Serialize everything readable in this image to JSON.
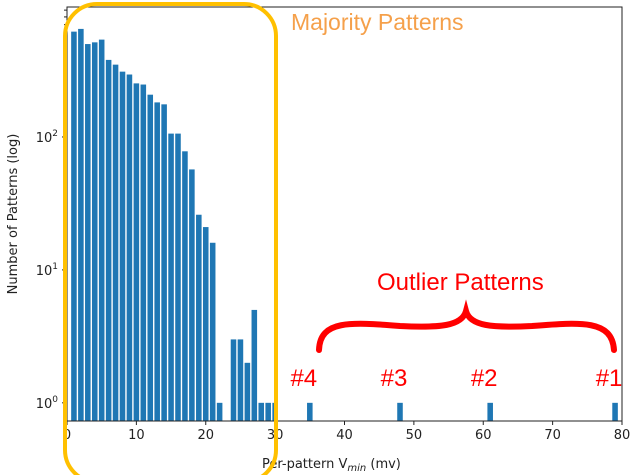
{
  "chart_data": {
    "type": "bar",
    "title": "",
    "xlabel": "Per-pattern V",
    "xlabel_subscript": "min",
    "xlabel_unit": " (mv)",
    "ylabel": "Number of Patterns (log)",
    "yscale": "log",
    "xlim": [
      0,
      80
    ],
    "ylim": [
      0.73,
      950
    ],
    "grid": false,
    "bar_color": "#1f77b4",
    "x_ticks": [
      "0",
      "10",
      "20",
      "30",
      "40",
      "50",
      "60",
      "70",
      "80"
    ],
    "y_ticks": [
      {
        "base": "10",
        "exp": "0"
      },
      {
        "base": "10",
        "exp": "1"
      },
      {
        "base": "10",
        "exp": "2"
      }
    ],
    "x": [
      1,
      2,
      3,
      4,
      5,
      6,
      7,
      8,
      9,
      10,
      11,
      12,
      13,
      14,
      15,
      16,
      17,
      18,
      19,
      20,
      21,
      22,
      24,
      25,
      26,
      27,
      28,
      29,
      30,
      35,
      48,
      61,
      79
    ],
    "values": [
      620,
      650,
      500,
      515,
      540,
      380,
      350,
      310,
      295,
      253,
      248,
      208,
      182,
      176,
      106,
      106,
      78,
      57,
      26,
      21,
      16,
      1,
      3,
      3,
      2,
      5,
      1,
      1,
      1,
      1,
      1,
      1,
      1
    ]
  },
  "annotations": {
    "majority_label": "Majority Patterns",
    "majority_color": "#f5a04a",
    "box_color": "#ffc000",
    "outlier_label": "Outlier Patterns",
    "outlier_color": "#ff0000",
    "outlier_markers": [
      {
        "label": "#4",
        "x": 35
      },
      {
        "label": "#3",
        "x": 48
      },
      {
        "label": "#2",
        "x": 61
      },
      {
        "label": "#1",
        "x": 79
      }
    ]
  }
}
